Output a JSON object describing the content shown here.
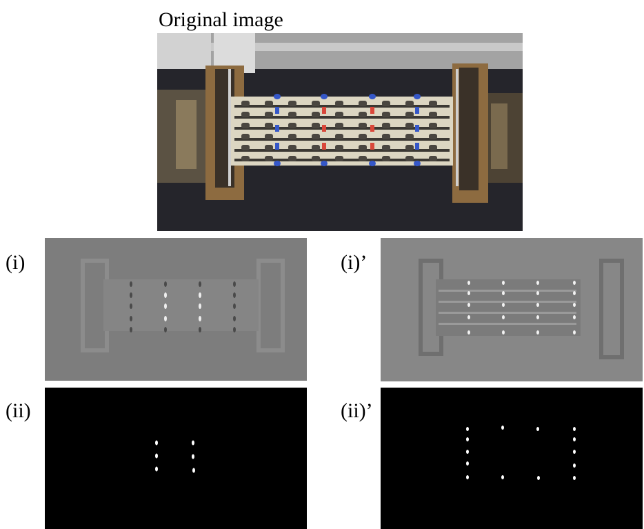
{
  "header": {
    "title": "Original image"
  },
  "panels": [
    {
      "label": "(i)"
    },
    {
      "label": "(i)’"
    },
    {
      "label": "(ii)"
    },
    {
      "label": "(ii)’"
    }
  ]
}
